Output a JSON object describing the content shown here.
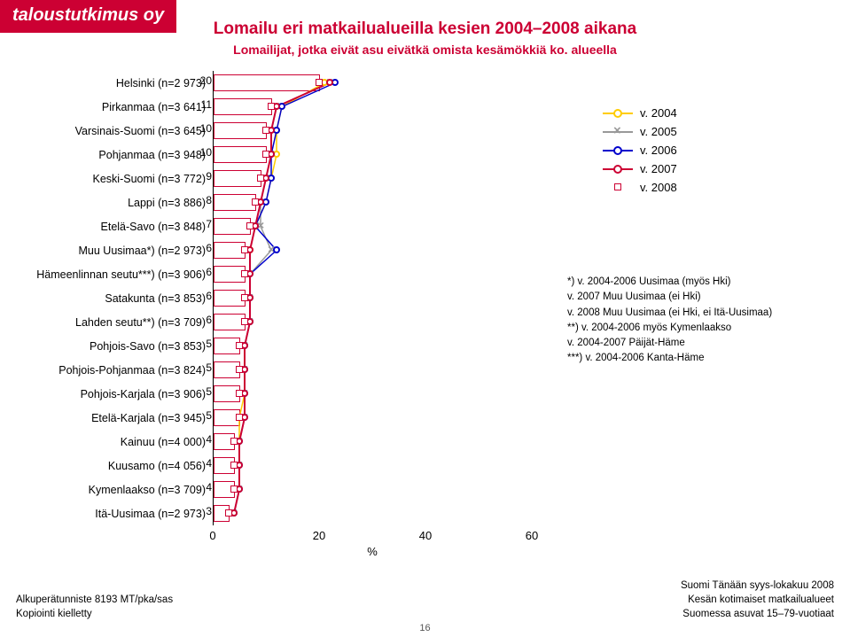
{
  "logo": "taloustutkimus oy",
  "title": "Lomailu eri matkailualueilla kesien 2004–2008 aikana",
  "subtitle": "Lomailijat, jotka eivät asu eivätkä omista kesämökkiä ko. alueella",
  "chart": {
    "type": "bar-with-series-markers",
    "xlim": [
      0,
      60
    ],
    "xticks": [
      0,
      20,
      40,
      60
    ],
    "xlabel": "%",
    "bar_fill": "#ffffff",
    "bar_border": "#cc0033",
    "categories": [
      {
        "label": "Helsinki (n=2 973)",
        "value": 20,
        "series": [
          21,
          22,
          23,
          22,
          20
        ]
      },
      {
        "label": "Pirkanmaa (n=3 641)",
        "value": 11,
        "series": [
          13,
          12,
          13,
          12,
          11
        ]
      },
      {
        "label": "Varsinais-Suomi (n=3 645)",
        "value": 10,
        "series": [
          12,
          11,
          12,
          11,
          10
        ]
      },
      {
        "label": "Pohjanmaa (n=3 948)",
        "value": 10,
        "series": [
          12,
          11,
          11,
          11,
          10
        ]
      },
      {
        "label": "Keski-Suomi (n=3 772)",
        "value": 9,
        "series": [
          11,
          10,
          11,
          10,
          9
        ]
      },
      {
        "label": "Lappi (n=3 886)",
        "value": 8,
        "series": [
          10,
          9,
          10,
          9,
          8
        ]
      },
      {
        "label": "Etelä-Savo (n=3 848)",
        "value": 7,
        "series": [
          8,
          9,
          8,
          8,
          7
        ]
      },
      {
        "label": "Muu Uusimaa*) (n=2 973)",
        "value": 6,
        "series": [
          7,
          11,
          12,
          7,
          6
        ]
      },
      {
        "label": "Hämeenlinnan seutu***) (n=3 906)",
        "value": 6,
        "series": [
          7,
          7,
          7,
          7,
          6
        ]
      },
      {
        "label": "Satakunta (n=3 853)",
        "value": 6,
        "series": [
          7,
          7,
          7,
          7,
          6
        ]
      },
      {
        "label": "Lahden seutu**) (n=3 709)",
        "value": 6,
        "series": [
          7,
          7,
          7,
          7,
          6
        ]
      },
      {
        "label": "Pohjois-Savo (n=3 853)",
        "value": 5,
        "series": [
          6,
          6,
          6,
          6,
          5
        ]
      },
      {
        "label": "Pohjois-Pohjanmaa (n=3 824)",
        "value": 5,
        "series": [
          6,
          6,
          6,
          6,
          5
        ]
      },
      {
        "label": "Pohjois-Karjala (n=3 906)",
        "value": 5,
        "series": [
          6,
          6,
          6,
          6,
          5
        ]
      },
      {
        "label": "Etelä-Karjala (n=3 945)",
        "value": 5,
        "series": [
          5,
          6,
          6,
          6,
          5
        ]
      },
      {
        "label": "Kainuu (n=4 000)",
        "value": 4,
        "series": [
          5,
          5,
          5,
          5,
          4
        ]
      },
      {
        "label": "Kuusamo (n=4 056)",
        "value": 4,
        "series": [
          5,
          5,
          5,
          5,
          4
        ]
      },
      {
        "label": "Kymenlaakso (n=3 709)",
        "value": 4,
        "series": [
          5,
          5,
          5,
          5,
          4
        ]
      },
      {
        "label": "Itä-Uusimaa (n=2 973)",
        "value": 3,
        "series": [
          4,
          4,
          4,
          4,
          3
        ]
      }
    ],
    "series_meta": [
      {
        "name": "v. 2004",
        "color": "#ffcc00",
        "marker": "circle"
      },
      {
        "name": "v. 2005",
        "color": "#999999",
        "marker": "x"
      },
      {
        "name": "v. 2006",
        "color": "#0000cc",
        "marker": "circle"
      },
      {
        "name": "v. 2007",
        "color": "#cc0033",
        "marker": "circle"
      },
      {
        "name": "v. 2008",
        "color": "#cc0033",
        "marker": "square"
      }
    ]
  },
  "notes": [
    "*) v. 2004-2006 Uusimaa (myös Hki)",
    "v. 2007 Muu Uusimaa (ei Hki)",
    "v. 2008 Muu Uusimaa (ei Hki, ei Itä-Uusimaa)",
    "**) v. 2004-2006 myös Kymenlaakso",
    "v. 2004-2007 Päijät-Häme",
    "***) v. 2004-2006 Kanta-Häme"
  ],
  "footer_left": [
    "Alkuperätunniste 8193 MT/pka/sas",
    "Kopiointi kielletty"
  ],
  "footer_right": [
    "Suomi Tänään syys-lokakuu 2008",
    "Kesän kotimaiset matkailualueet",
    "Suomessa asuvat 15–79-vuotiaat"
  ],
  "page_number": "16"
}
